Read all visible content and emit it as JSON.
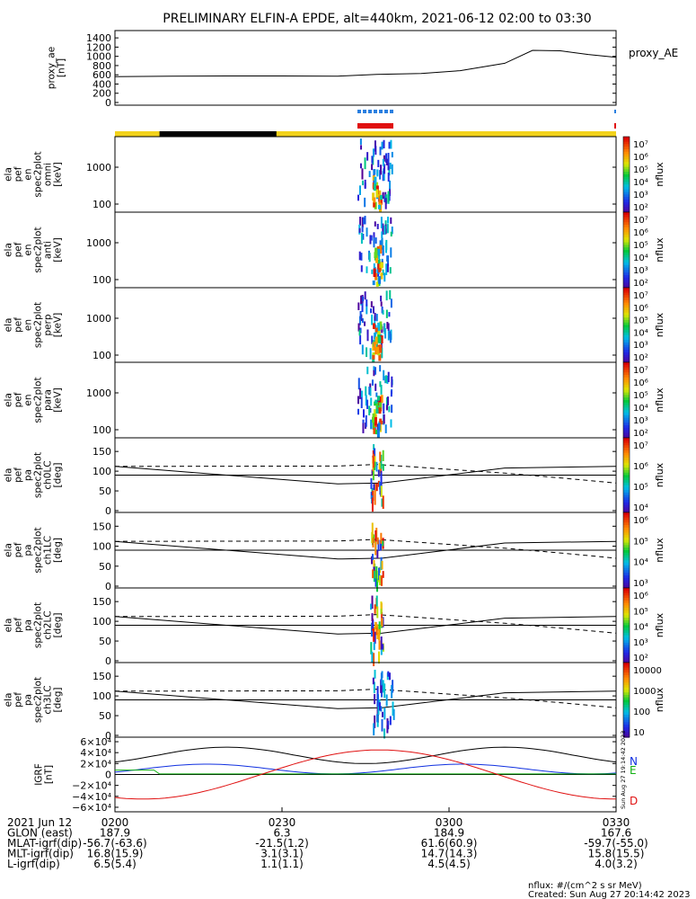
{
  "title": "PRELIMINARY ELFIN-A EPDE, alt=440km, 2021-06-12 02:00 to 03:30",
  "colors": {
    "state_bar_yellow": "#f2d21b",
    "state_bar_black": "#000000",
    "indicator_blue": "#2a7fe0",
    "indicator_red": "#e01010",
    "igrf_n": "#1030e0",
    "igrf_e": "#10b010",
    "igrf_d": "#e01010"
  },
  "chart_data": [
    {
      "id": "proxy_ae",
      "type": "line",
      "ylabel_lines": [
        "proxy_ae",
        "[nT]"
      ],
      "series_label": "proxy_AE",
      "yticks": [
        "1400",
        "1200",
        "1000",
        "800",
        "600",
        "400",
        "200",
        "0"
      ],
      "ylim": [
        0,
        1500
      ],
      "x": [
        0,
        10,
        20,
        30,
        40,
        47,
        55,
        62,
        70,
        75,
        80,
        85,
        90
      ],
      "values": [
        560,
        570,
        575,
        575,
        570,
        610,
        630,
        690,
        850,
        1130,
        1120,
        1040,
        980
      ]
    },
    {
      "id": "spec_omni",
      "type": "heatmap",
      "ylabel_lines": [
        "ela",
        "pef",
        "en",
        "spec2plot",
        "omni",
        "[keV]"
      ],
      "yticks": [
        "1000",
        "100"
      ],
      "ylog": true,
      "colorbar": {
        "label": "nflux",
        "ticks": [
          "10⁷",
          "10⁶",
          "10⁵",
          "10⁴",
          "10³",
          "10²"
        ]
      }
    },
    {
      "id": "spec_anti",
      "type": "heatmap",
      "ylabel_lines": [
        "ela",
        "pef",
        "en",
        "spec2plot",
        "anti",
        "[keV]"
      ],
      "yticks": [
        "1000",
        "100"
      ],
      "ylog": true,
      "colorbar": {
        "label": "nflux",
        "ticks": [
          "10⁷",
          "10⁶",
          "10⁵",
          "10⁴",
          "10³",
          "10²"
        ]
      }
    },
    {
      "id": "spec_perp",
      "type": "heatmap",
      "ylabel_lines": [
        "ela",
        "pef",
        "en",
        "spec2plot",
        "perp",
        "[keV]"
      ],
      "yticks": [
        "1000",
        "100"
      ],
      "ylog": true,
      "colorbar": {
        "label": "nflux",
        "ticks": [
          "10⁷",
          "10⁶",
          "10⁵",
          "10⁴",
          "10³",
          "10²"
        ]
      }
    },
    {
      "id": "spec_para",
      "type": "heatmap",
      "ylabel_lines": [
        "ela",
        "pef",
        "en",
        "spec2plot",
        "para",
        "[keV]"
      ],
      "yticks": [
        "1000",
        "100"
      ],
      "ylog": true,
      "colorbar": {
        "label": "nflux",
        "ticks": [
          "10⁷",
          "10⁶",
          "10⁵",
          "10⁴",
          "10³",
          "10²"
        ]
      }
    },
    {
      "id": "pa_ch0",
      "type": "heatmap",
      "ylabel_lines": [
        "ela",
        "pef",
        "pa",
        "spec2plot",
        "ch0LC",
        "[deg]"
      ],
      "yticks": [
        "150",
        "100",
        "50",
        "0"
      ],
      "ylim": [
        0,
        180
      ],
      "colorbar": {
        "label": "nflux",
        "ticks": [
          "10⁷",
          "10⁶",
          "10⁵",
          "10⁴"
        ]
      }
    },
    {
      "id": "pa_ch1",
      "type": "heatmap",
      "ylabel_lines": [
        "ela",
        "pef",
        "pa",
        "spec2plot",
        "ch1LC",
        "[deg]"
      ],
      "yticks": [
        "150",
        "100",
        "50",
        "0"
      ],
      "ylim": [
        0,
        180
      ],
      "colorbar": {
        "label": "nflux",
        "ticks": [
          "10⁶",
          "10⁵",
          "10⁴",
          "10³"
        ]
      }
    },
    {
      "id": "pa_ch2",
      "type": "heatmap",
      "ylabel_lines": [
        "ela",
        "pef",
        "pa",
        "spec2plot",
        "ch2LC",
        "[deg]"
      ],
      "yticks": [
        "150",
        "100",
        "50",
        "0"
      ],
      "ylim": [
        0,
        180
      ],
      "colorbar": {
        "label": "nflux",
        "ticks": [
          "10⁶",
          "10⁵",
          "10⁴",
          "10³",
          "10²"
        ]
      }
    },
    {
      "id": "pa_ch3",
      "type": "heatmap",
      "ylabel_lines": [
        "ela",
        "pef",
        "pa",
        "spec2plot",
        "ch3LC",
        "[deg]"
      ],
      "yticks": [
        "150",
        "100",
        "50",
        "0"
      ],
      "ylim": [
        0,
        180
      ],
      "colorbar": {
        "label": "nflux",
        "ticks": [
          "10000",
          "1000",
          "100",
          "10"
        ]
      }
    },
    {
      "id": "igrf",
      "type": "line",
      "ylabel_lines": [
        "IGRF",
        "[nT]"
      ],
      "yticks": [
        "6×10⁴",
        "4×10⁴",
        "2×10⁴",
        "0",
        "−2×10⁴",
        "−4×10⁴",
        "−6×10⁴"
      ],
      "ylim": [
        -65000,
        65000
      ],
      "legend": [
        "N",
        "E",
        "D"
      ],
      "timestamp": "Sun Aug 27 19:14:42 2023"
    }
  ],
  "time_axis": {
    "ticks": [
      "0200",
      "0230",
      "0300",
      "0330"
    ],
    "rows": [
      {
        "label": "2021 Jun 12",
        "values": [
          "",
          "",
          "",
          ""
        ]
      },
      {
        "label": "GLON (east)",
        "values": [
          "187.9",
          "6.3",
          "184.9",
          "167.6"
        ]
      },
      {
        "label": "MLAT-igrf(dip)",
        "values": [
          "-56.7(-63.6)",
          "-21.5(1.2)",
          "61.6(60.9)",
          "-59.7(-55.0)"
        ]
      },
      {
        "label": "MLT-igrf(dip)",
        "values": [
          "16.8(15.9)",
          "3.1(3.1)",
          "14.7(14.3)",
          "15.8(15.5)"
        ]
      },
      {
        "label": "L-igrf(dip)",
        "values": [
          "6.5(5.4)",
          "1.1(1.1)",
          "4.5(4.5)",
          "4.0(3.2)"
        ]
      }
    ]
  },
  "footer": {
    "units": "nflux: #/(cm^2 s sr MeV)",
    "created": "Created: Sun Aug 27 20:14:42 2023"
  }
}
